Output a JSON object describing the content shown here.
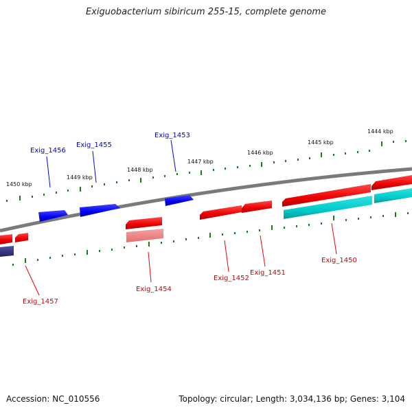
{
  "title": "Exiguobacterium sibiricum 255-15, complete genome",
  "footer": {
    "accession_label": "Accession:",
    "accession": "NC_010556",
    "topology_label": "Topology:",
    "topology": "circular",
    "length_label": "Length:",
    "length": "3,034,136 bp",
    "genes_label": "Genes:",
    "genes": "3,104"
  },
  "scale": {
    "ticks": [
      "1444 kbp",
      "1445 kbp",
      "1446 kbp",
      "1447 kbp",
      "1448 kbp",
      "1449 kbp",
      "1450 kbp"
    ]
  },
  "genes": [
    {
      "name": "Exig_1456",
      "strand": "+",
      "color": "#0000ee"
    },
    {
      "name": "Exig_1455",
      "strand": "+",
      "color": "#0000ee"
    },
    {
      "name": "Exig_1453",
      "strand": "+",
      "color": "#0000ee"
    },
    {
      "name": "Exig_1457",
      "strand": "-",
      "color": "#ee0000"
    },
    {
      "name": "Exig_1454",
      "strand": "-",
      "color": "#ee0000"
    },
    {
      "name": "Exig_1452",
      "strand": "-",
      "color": "#ee0000"
    },
    {
      "name": "Exig_1451",
      "strand": "-",
      "color": "#ee0000"
    },
    {
      "name": "Exig_1450",
      "strand": "-",
      "color": "#ee0000"
    }
  ],
  "colors": {
    "plus_strand": "#0000ee",
    "minus_strand": "#ee0000",
    "cog_cyan": "#00cccc",
    "cog_pink": "#f08080",
    "cog_navy": "#333388",
    "backbone": "#808080",
    "tick": "#1a7a1a"
  }
}
